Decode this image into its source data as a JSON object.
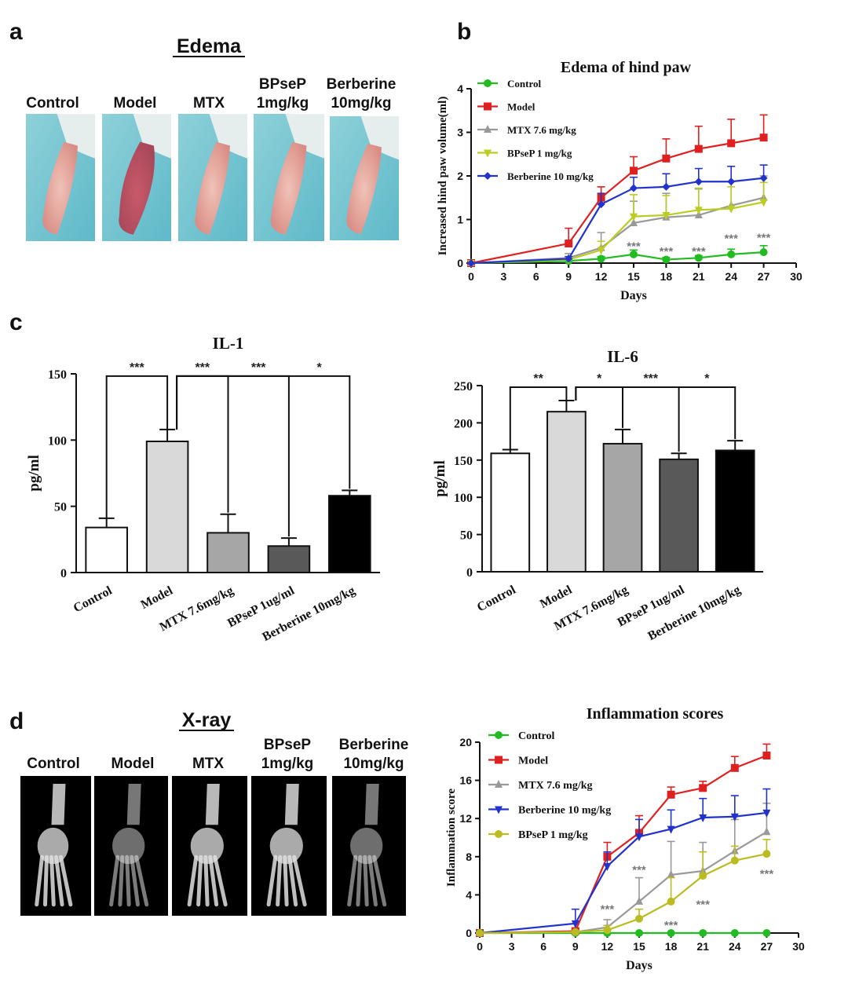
{
  "panel_labels": {
    "a": "a",
    "b": "b",
    "c": "c",
    "d": "d"
  },
  "photos": {
    "edema_title": "Edema",
    "edema_columns": [
      [
        "Control"
      ],
      [
        "Model"
      ],
      [
        "MTX"
      ],
      [
        "BPseP",
        "1mg/kg"
      ],
      [
        "Berberine",
        "10mg/kg"
      ]
    ],
    "xray_title": "X-ray",
    "xray_columns": [
      [
        "Control"
      ],
      [
        "Model"
      ],
      [
        "MTX"
      ],
      [
        "BPseP",
        "1mg/kg"
      ],
      [
        "Berberine",
        "10mg/kg"
      ]
    ]
  },
  "chart_data": [
    {
      "id": "edema",
      "type": "line",
      "title": "Edema of hind paw",
      "xlabel": "Days",
      "ylabel": "Increased hind paw volume(ml)",
      "xlim": [
        0,
        30
      ],
      "ylim": [
        0,
        4
      ],
      "xticks": [
        0,
        3,
        6,
        9,
        12,
        15,
        18,
        21,
        24,
        27,
        30
      ],
      "yticks": [
        0,
        1,
        2,
        3,
        4
      ],
      "legend_position": "top-left",
      "series": [
        {
          "name": "Control",
          "color": "#22bb22",
          "marker": "circle",
          "x": [
            0,
            9,
            12,
            15,
            18,
            21,
            24,
            27
          ],
          "y": [
            0,
            0.05,
            0.1,
            0.2,
            0.08,
            0.12,
            0.2,
            0.25
          ],
          "err": [
            0,
            0.03,
            0.05,
            0.1,
            0.05,
            0.05,
            0.12,
            0.15
          ]
        },
        {
          "name": "Model",
          "color": "#e02020",
          "marker": "square",
          "x": [
            0,
            9,
            12,
            15,
            18,
            21,
            24,
            27
          ],
          "y": [
            0,
            0.45,
            1.5,
            2.12,
            2.4,
            2.62,
            2.75,
            2.88
          ],
          "err": [
            0,
            0.35,
            0.25,
            0.32,
            0.45,
            0.52,
            0.55,
            0.52
          ]
        },
        {
          "name": "MTX  7.6 mg/kg",
          "color": "#999999",
          "marker": "triangle",
          "x": [
            0,
            9,
            12,
            15,
            18,
            21,
            24,
            27
          ],
          "y": [
            0,
            0.12,
            0.35,
            0.92,
            1.05,
            1.1,
            1.32,
            1.5
          ],
          "err": [
            0,
            0.1,
            0.35,
            0.5,
            0.55,
            0.6,
            0.55,
            0.5
          ]
        },
        {
          "name": "BPseP 1 mg/kg",
          "color": "#bbcc22",
          "marker": "triangle-down",
          "x": [
            0,
            9,
            12,
            15,
            18,
            21,
            24,
            27
          ],
          "y": [
            0,
            0.08,
            0.3,
            1.07,
            1.1,
            1.22,
            1.25,
            1.4
          ],
          "err": [
            0,
            0.05,
            0.2,
            0.5,
            0.45,
            0.5,
            0.5,
            0.45
          ]
        },
        {
          "name": "Berberine 10 mg/kg",
          "color": "#2233cc",
          "marker": "diamond",
          "x": [
            0,
            9,
            12,
            15,
            18,
            21,
            24,
            27
          ],
          "y": [
            0,
            0.1,
            1.35,
            1.72,
            1.75,
            1.87,
            1.87,
            1.95
          ],
          "err": [
            0,
            0.05,
            0.25,
            0.25,
            0.3,
            0.3,
            0.35,
            0.3
          ]
        }
      ],
      "annotations": [
        {
          "x": 15,
          "y": 0.3,
          "text": "***"
        },
        {
          "x": 18,
          "y": 0.18,
          "text": "***"
        },
        {
          "x": 21,
          "y": 0.18,
          "text": "***"
        },
        {
          "x": 24,
          "y": 0.48,
          "text": "***"
        },
        {
          "x": 27,
          "y": 0.5,
          "text": "***"
        }
      ]
    },
    {
      "id": "il1",
      "type": "bar",
      "title": "IL-1",
      "ylabel": "pg/ml",
      "ylim": [
        0,
        150
      ],
      "yticks": [
        0,
        50,
        100,
        150
      ],
      "categories": [
        "Control",
        "Model",
        "MTX 7.6mg/kg",
        "BPseP 1ug/ml",
        "Berberine 10mg/kg"
      ],
      "values": [
        34,
        99,
        30,
        20,
        58
      ],
      "errors": [
        7,
        9,
        14,
        6,
        4
      ],
      "bar_colors": [
        "#ffffff",
        "#d9d9d9",
        "#a6a6a6",
        "#595959",
        "#000000"
      ],
      "comparisons": [
        {
          "from": 0,
          "to": 1,
          "label": "***"
        },
        {
          "from": 1,
          "to": 2,
          "label": "***"
        },
        {
          "from": 1,
          "to": 3,
          "label": "***"
        },
        {
          "from": 1,
          "to": 4,
          "label": "*"
        }
      ]
    },
    {
      "id": "il6",
      "type": "bar",
      "title": "IL-6",
      "ylabel": "pg/ml",
      "ylim": [
        0,
        250
      ],
      "yticks": [
        0,
        50,
        100,
        150,
        200,
        250
      ],
      "categories": [
        "Control",
        "Model",
        "MTX 7.6mg/kg",
        "BPseP 1ug/ml",
        "Berberine 10mg/kg"
      ],
      "values": [
        159,
        215,
        172,
        151,
        163
      ],
      "errors": [
        5,
        15,
        19,
        8,
        13
      ],
      "bar_colors": [
        "#ffffff",
        "#d9d9d9",
        "#a6a6a6",
        "#595959",
        "#000000"
      ],
      "comparisons": [
        {
          "from": 0,
          "to": 1,
          "label": "**"
        },
        {
          "from": 1,
          "to": 2,
          "label": "*"
        },
        {
          "from": 1,
          "to": 3,
          "label": "***"
        },
        {
          "from": 1,
          "to": 4,
          "label": "*"
        }
      ]
    },
    {
      "id": "inflammation",
      "type": "line",
      "title": "Inflammation scores",
      "xlabel": "Days",
      "ylabel": "Inflammation score",
      "xlim": [
        0,
        30
      ],
      "ylim": [
        0,
        20
      ],
      "xticks": [
        0,
        3,
        6,
        9,
        12,
        15,
        18,
        21,
        24,
        27,
        30
      ],
      "yticks": [
        0,
        4,
        8,
        12,
        16,
        20
      ],
      "legend_position": "top-left",
      "series": [
        {
          "name": "Control",
          "color": "#22bb22",
          "marker": "circle",
          "x": [
            0,
            9,
            12,
            15,
            18,
            21,
            24,
            27
          ],
          "y": [
            0,
            0,
            0,
            0,
            0,
            0,
            0,
            0
          ],
          "err": [
            0,
            0,
            0,
            0,
            0,
            0,
            0,
            0
          ]
        },
        {
          "name": "Model",
          "color": "#e02020",
          "marker": "square",
          "x": [
            0,
            9,
            12,
            15,
            18,
            21,
            24,
            27
          ],
          "y": [
            0,
            0.2,
            8,
            10.5,
            14.5,
            15.2,
            17.3,
            18.6
          ],
          "err": [
            0,
            0.2,
            1.5,
            1.8,
            0.8,
            0.7,
            1.2,
            1.2
          ]
        },
        {
          "name": "MTX  7.6 mg/kg",
          "color": "#999999",
          "marker": "triangle",
          "x": [
            0,
            9,
            12,
            15,
            18,
            21,
            24,
            27
          ],
          "y": [
            0,
            0.1,
            0.6,
            3.3,
            6.1,
            6.5,
            8.6,
            10.6
          ],
          "err": [
            0,
            0.1,
            0.8,
            2.5,
            3.5,
            3.0,
            3.3,
            3.0
          ]
        },
        {
          "name": "Berberine 10 mg/kg",
          "color": "#2233cc",
          "marker": "triangle-down",
          "x": [
            0,
            9,
            12,
            15,
            18,
            21,
            24,
            27
          ],
          "y": [
            0,
            1.0,
            7.0,
            10.1,
            10.9,
            12.1,
            12.2,
            12.6
          ],
          "err": [
            0,
            1.5,
            1.5,
            1.8,
            2.0,
            2.0,
            2.2,
            2.5
          ]
        },
        {
          "name": "BPseP 1 mg/kg",
          "color": "#bbbb22",
          "marker": "circle",
          "x": [
            0,
            9,
            12,
            15,
            18,
            21,
            24,
            27
          ],
          "y": [
            0,
            0.1,
            0.3,
            1.5,
            3.3,
            6.0,
            7.6,
            8.3
          ],
          "err": [
            0,
            0.1,
            0.5,
            1.0,
            2.5,
            2.5,
            1.5,
            1.5
          ]
        }
      ],
      "annotations": [
        {
          "x": 12,
          "y": 2.1,
          "text": "***"
        },
        {
          "x": 15,
          "y": 6.2,
          "text": "***"
        },
        {
          "x": 18,
          "y": 0.4,
          "text": "***"
        },
        {
          "x": 21,
          "y": 2.6,
          "text": "***"
        },
        {
          "x": 27,
          "y": 5.8,
          "text": "***"
        }
      ]
    }
  ]
}
